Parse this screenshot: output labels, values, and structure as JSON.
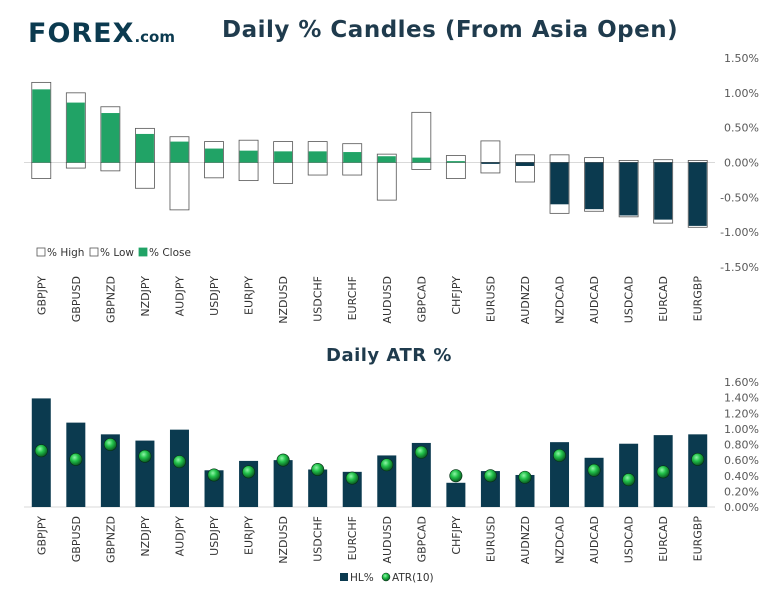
{
  "logo": {
    "text": "FOREX",
    "suffix": ".com"
  },
  "colors": {
    "green": "#21a366",
    "navy": "#0b3a4f",
    "axis": "#595959",
    "grid": "#d9d9d9"
  },
  "chart_data": [
    {
      "type": "bar",
      "title": "Daily % Candles (From Asia Open)",
      "categories": [
        "GBPJPY",
        "GBPUSD",
        "GBPNZD",
        "NZDJPY",
        "AUDJPY",
        "USDJPY",
        "EURJPY",
        "NZDUSD",
        "USDCHF",
        "EURCHF",
        "AUDUSD",
        "GBPCAD",
        "CHFJPY",
        "EURUSD",
        "AUDNZD",
        "NZDCAD",
        "AUDCAD",
        "USDCAD",
        "EURCAD",
        "EURGBP"
      ],
      "series": [
        {
          "name": "% High",
          "values": [
            1.15,
            1.0,
            0.8,
            0.49,
            0.37,
            0.3,
            0.32,
            0.3,
            0.3,
            0.27,
            0.12,
            0.72,
            0.1,
            0.31,
            0.11,
            0.11,
            0.07,
            0.03,
            0.04,
            0.03
          ]
        },
        {
          "name": "% Low",
          "values": [
            -0.23,
            -0.08,
            -0.12,
            -0.37,
            -0.68,
            -0.22,
            -0.26,
            -0.3,
            -0.18,
            -0.18,
            -0.54,
            -0.1,
            -0.23,
            -0.15,
            -0.28,
            -0.73,
            -0.7,
            -0.78,
            -0.87,
            -0.93
          ]
        },
        {
          "name": "% Close",
          "values": [
            1.05,
            0.86,
            0.71,
            0.41,
            0.3,
            0.2,
            0.17,
            0.16,
            0.16,
            0.15,
            0.09,
            0.07,
            0.02,
            -0.02,
            -0.05,
            -0.6,
            -0.67,
            -0.76,
            -0.82,
            -0.91
          ]
        }
      ],
      "yticks": [
        "1.50%",
        "1.00%",
        "0.50%",
        "0.00%",
        "-0.50%",
        "-1.00%",
        "-1.50%"
      ],
      "ylim": [
        -1.5,
        1.5
      ],
      "legend": [
        "% High",
        "% Low",
        "% Close"
      ],
      "xlabel": "",
      "ylabel": ""
    },
    {
      "type": "bar",
      "title": "Daily ATR %",
      "categories": [
        "GBPJPY",
        "GBPUSD",
        "GBPNZD",
        "NZDJPY",
        "AUDJPY",
        "USDJPY",
        "EURJPY",
        "NZDUSD",
        "USDCHF",
        "EURCHF",
        "AUDUSD",
        "GBPCAD",
        "CHFJPY",
        "EURUSD",
        "AUDNZD",
        "NZDCAD",
        "AUDCAD",
        "USDCAD",
        "EURCAD",
        "EURGBP"
      ],
      "series": [
        {
          "name": "HL%",
          "values": [
            1.39,
            1.08,
            0.93,
            0.85,
            0.99,
            0.47,
            0.59,
            0.6,
            0.48,
            0.45,
            0.66,
            0.82,
            0.31,
            0.46,
            0.41,
            0.83,
            0.63,
            0.81,
            0.92,
            0.93
          ]
        },
        {
          "name": "ATR(10)",
          "values": [
            0.72,
            0.61,
            0.8,
            0.65,
            0.58,
            0.41,
            0.45,
            0.6,
            0.48,
            0.37,
            0.54,
            0.7,
            0.4,
            0.4,
            0.38,
            0.66,
            0.47,
            0.35,
            0.45,
            0.61
          ]
        }
      ],
      "yticks": [
        "1.60%",
        "1.40%",
        "1.20%",
        "1.00%",
        "0.80%",
        "0.60%",
        "0.40%",
        "0.20%",
        "0.00%"
      ],
      "ylim": [
        0,
        1.6
      ],
      "legend": [
        "HL%",
        "ATR(10)"
      ],
      "xlabel": "",
      "ylabel": ""
    }
  ]
}
